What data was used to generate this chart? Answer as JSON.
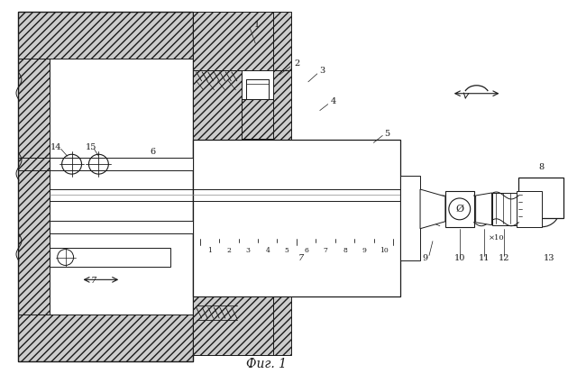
{
  "title": "Фиг. 1",
  "bg_color": "#ffffff",
  "line_color": "#1a1a1a",
  "fig_width": 6.4,
  "fig_height": 4.25,
  "dpi": 100
}
